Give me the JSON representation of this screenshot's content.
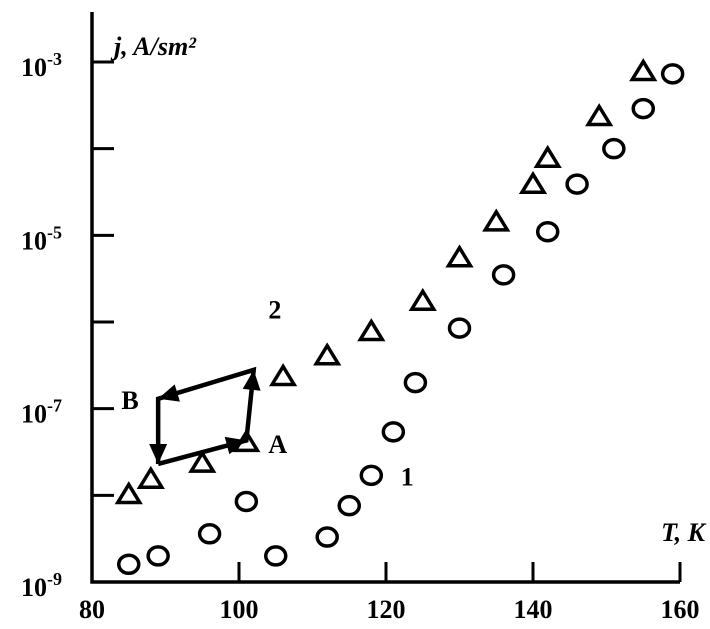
{
  "chart_data": {
    "type": "scatter",
    "title": "",
    "ylabel": "j, A/sm²",
    "xlabel": "T, K",
    "xlim": [
      80,
      160
    ],
    "ylim_log10": [
      -9,
      -3
    ],
    "yscale": "log",
    "grid": false,
    "x_ticks": [
      "80",
      "100",
      "120",
      "140",
      "160"
    ],
    "y_ticks": [
      {
        "base": "10",
        "exp": "-9"
      },
      {
        "base": "10",
        "exp": "-7"
      },
      {
        "base": "10",
        "exp": "-5"
      },
      {
        "base": "10",
        "exp": "-3"
      }
    ],
    "series": [
      {
        "name": "1",
        "marker": "circle",
        "points": [
          [
            85,
            1.6e-09
          ],
          [
            89,
            2e-09
          ],
          [
            96,
            3.6e-09
          ],
          [
            101,
            8.5e-09
          ],
          [
            105,
            2e-09
          ],
          [
            112,
            3.3e-09
          ],
          [
            115,
            7.6e-09
          ],
          [
            118,
            1.7e-08
          ],
          [
            121,
            5.4e-08
          ],
          [
            124,
            2e-07
          ],
          [
            130,
            8.5e-07
          ],
          [
            136,
            3.5e-06
          ],
          [
            142,
            1.1e-05
          ],
          [
            146,
            3.9e-05
          ],
          [
            151,
            0.0001
          ],
          [
            155,
            0.00029
          ],
          [
            159,
            0.00073
          ]
        ]
      },
      {
        "name": "2",
        "marker": "triangle",
        "points": [
          [
            85,
            1e-08
          ],
          [
            88,
            1.5e-08
          ],
          [
            95,
            2.3e-08
          ],
          [
            101,
            4e-08
          ],
          [
            106,
            2.3e-07
          ],
          [
            112,
            4e-07
          ],
          [
            118,
            7.6e-07
          ],
          [
            125,
            1.7e-06
          ],
          [
            130,
            5.4e-06
          ],
          [
            135,
            1.4e-05
          ],
          [
            140,
            3.8e-05
          ],
          [
            142,
            7.6e-05
          ],
          [
            149,
            0.00023
          ],
          [
            155,
            0.00076
          ]
        ]
      }
    ],
    "annotations": [
      {
        "text": "A",
        "x": 104,
        "y": 4e-08
      },
      {
        "text": "B",
        "x": 84,
        "y": 1.3e-07
      }
    ],
    "hysteresis_loop": {
      "path": [
        [
          89,
          2.3e-08
        ],
        [
          101,
          4.3e-08
        ],
        [
          102,
          2.8e-07
        ],
        [
          89,
          1.3e-07
        ],
        [
          89,
          2.3e-08
        ]
      ],
      "arrow_ends": [
        [
          101,
          4.3e-08
        ],
        [
          102,
          2.8e-07
        ],
        [
          89,
          1.3e-07
        ],
        [
          89,
          2.3e-08
        ]
      ]
    }
  }
}
